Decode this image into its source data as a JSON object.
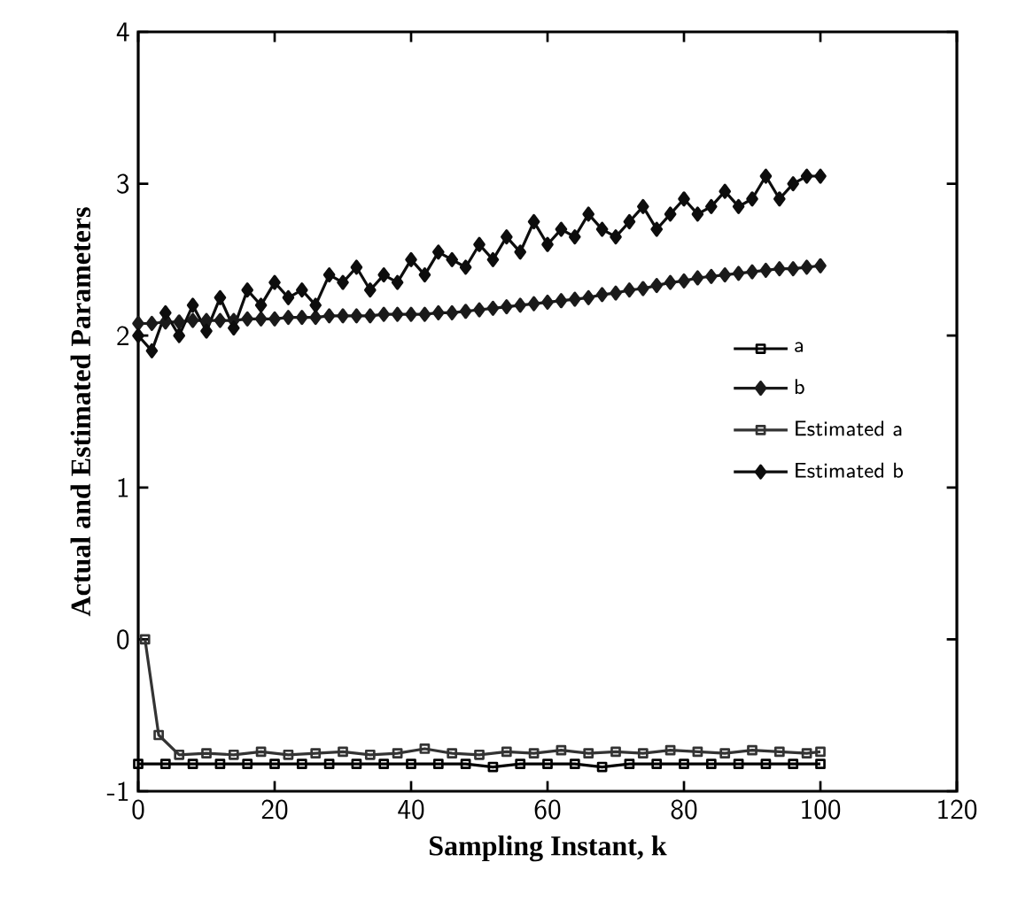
{
  "chart_data": {
    "type": "line",
    "xlabel": "Sampling Instant, k",
    "ylabel": "Actual  and  Estimated  Parameters",
    "xlim": [
      0,
      120
    ],
    "xticks": [
      0,
      20,
      40,
      60,
      80,
      100,
      120
    ],
    "ylim": [
      -1,
      4
    ],
    "yticks": [
      -1,
      0,
      1,
      2,
      3,
      4
    ],
    "grid": false,
    "legend": "right",
    "line_style": "solid",
    "series": [
      {
        "name": "a",
        "color": "#000000",
        "marker": "square",
        "x": [
          0,
          4,
          8,
          12,
          16,
          20,
          24,
          28,
          32,
          36,
          40,
          44,
          48,
          52,
          56,
          60,
          64,
          68,
          72,
          76,
          80,
          84,
          88,
          92,
          96,
          100
        ],
        "values": [
          -0.82,
          -0.82,
          -0.82,
          -0.82,
          -0.82,
          -0.82,
          -0.82,
          -0.82,
          -0.82,
          -0.82,
          -0.82,
          -0.82,
          -0.82,
          -0.84,
          -0.82,
          -0.82,
          -0.82,
          -0.84,
          -0.82,
          -0.82,
          -0.82,
          -0.82,
          -0.82,
          -0.82,
          -0.82,
          -0.82
        ]
      },
      {
        "name": "b",
        "color": "#1a1a1a",
        "marker": "diamond",
        "x": [
          0,
          2,
          4,
          6,
          8,
          10,
          12,
          14,
          16,
          18,
          20,
          22,
          24,
          26,
          28,
          30,
          32,
          34,
          36,
          38,
          40,
          42,
          44,
          46,
          48,
          50,
          52,
          54,
          56,
          58,
          60,
          62,
          64,
          66,
          68,
          70,
          72,
          74,
          76,
          78,
          80,
          82,
          84,
          86,
          88,
          90,
          92,
          94,
          96,
          98,
          100
        ],
        "values": [
          2.08,
          2.08,
          2.09,
          2.09,
          2.1,
          2.1,
          2.1,
          2.1,
          2.11,
          2.11,
          2.11,
          2.12,
          2.12,
          2.12,
          2.13,
          2.13,
          2.13,
          2.13,
          2.14,
          2.14,
          2.14,
          2.14,
          2.15,
          2.15,
          2.16,
          2.17,
          2.18,
          2.19,
          2.2,
          2.21,
          2.22,
          2.23,
          2.24,
          2.25,
          2.27,
          2.28,
          2.3,
          2.31,
          2.33,
          2.35,
          2.36,
          2.38,
          2.39,
          2.4,
          2.41,
          2.42,
          2.43,
          2.44,
          2.44,
          2.45,
          2.46
        ]
      },
      {
        "name": "Estimated a",
        "color": "#333333",
        "marker": "square",
        "x": [
          1,
          3,
          6,
          10,
          14,
          18,
          22,
          26,
          30,
          34,
          38,
          42,
          46,
          50,
          54,
          58,
          62,
          66,
          70,
          74,
          78,
          82,
          86,
          90,
          94,
          98,
          100
        ],
        "values": [
          0,
          -0.63,
          -0.76,
          -0.75,
          -0.76,
          -0.74,
          -0.76,
          -0.75,
          -0.74,
          -0.76,
          -0.75,
          -0.72,
          -0.75,
          -0.76,
          -0.74,
          -0.75,
          -0.73,
          -0.75,
          -0.74,
          -0.75,
          -0.73,
          -0.74,
          -0.75,
          -0.73,
          -0.74,
          -0.75,
          -0.74
        ]
      },
      {
        "name": "Estimated b",
        "color": "#0d0d0d",
        "marker": "diamond",
        "x": [
          0,
          2,
          4,
          6,
          8,
          10,
          12,
          14,
          16,
          18,
          20,
          22,
          24,
          26,
          28,
          30,
          32,
          34,
          36,
          38,
          40,
          42,
          44,
          46,
          48,
          50,
          52,
          54,
          56,
          58,
          60,
          62,
          64,
          66,
          68,
          70,
          72,
          74,
          76,
          78,
          80,
          82,
          84,
          86,
          88,
          90,
          92,
          94,
          96,
          98,
          100
        ],
        "values": [
          2.0,
          1.9,
          2.15,
          2.0,
          2.2,
          2.03,
          2.25,
          2.05,
          2.3,
          2.2,
          2.35,
          2.25,
          2.3,
          2.2,
          2.4,
          2.35,
          2.45,
          2.3,
          2.4,
          2.35,
          2.5,
          2.4,
          2.55,
          2.5,
          2.45,
          2.6,
          2.5,
          2.65,
          2.55,
          2.75,
          2.6,
          2.7,
          2.65,
          2.8,
          2.7,
          2.65,
          2.75,
          2.85,
          2.7,
          2.8,
          2.9,
          2.8,
          2.85,
          2.95,
          2.85,
          2.9,
          3.05,
          2.9,
          3.0,
          3.05,
          3.05
        ]
      }
    ]
  }
}
